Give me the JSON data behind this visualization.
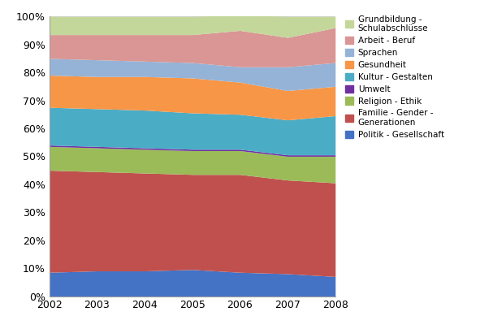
{
  "years": [
    2002,
    2003,
    2004,
    2005,
    2006,
    2007,
    2008
  ],
  "series": [
    {
      "label": "Politik - Gesellschaft",
      "color": "#4472C4",
      "values": [
        8.5,
        9.0,
        9.0,
        9.5,
        8.5,
        8.0,
        7.0
      ]
    },
    {
      "label": "Familie - Gender -\nGenerationen",
      "color": "#C0504D",
      "values": [
        36.5,
        35.5,
        35.0,
        34.0,
        35.0,
        33.5,
        33.5
      ]
    },
    {
      "label": "Religion - Ethik",
      "color": "#9BBB59",
      "values": [
        8.5,
        8.5,
        8.5,
        8.5,
        8.5,
        8.5,
        9.5
      ]
    },
    {
      "label": "Umwelt",
      "color": "#7030A0",
      "values": [
        0.5,
        0.5,
        0.5,
        0.5,
        0.5,
        0.5,
        0.5
      ]
    },
    {
      "label": "Kultur - Gestalten",
      "color": "#4BACC6",
      "values": [
        13.5,
        13.5,
        13.5,
        13.0,
        12.5,
        12.5,
        14.0
      ]
    },
    {
      "label": "Gesundheit",
      "color": "#F79646",
      "values": [
        11.5,
        11.5,
        12.0,
        12.5,
        11.5,
        10.5,
        10.5
      ]
    },
    {
      "label": "Sprachen",
      "color": "#95B3D7",
      "values": [
        6.0,
        6.0,
        5.5,
        5.5,
        5.5,
        8.5,
        8.5
      ]
    },
    {
      "label": "Arbeit - Beruf",
      "color": "#D99694",
      "values": [
        8.5,
        9.0,
        9.5,
        10.0,
        13.0,
        10.5,
        12.5
      ]
    },
    {
      "label": "Grundbildung -\nSchulabschlüsse",
      "color": "#C4D79B",
      "values": [
        6.5,
        6.5,
        6.5,
        6.5,
        5.5,
        7.5,
        4.0
      ]
    }
  ],
  "ylim": [
    0,
    100
  ],
  "ytick_labels": [
    "0%",
    "10%",
    "20%",
    "30%",
    "40%",
    "50%",
    "60%",
    "70%",
    "80%",
    "90%",
    "100%"
  ],
  "background_color": "#FFFFFF",
  "figsize": [
    6.07,
    4.05
  ],
  "dpi": 100
}
